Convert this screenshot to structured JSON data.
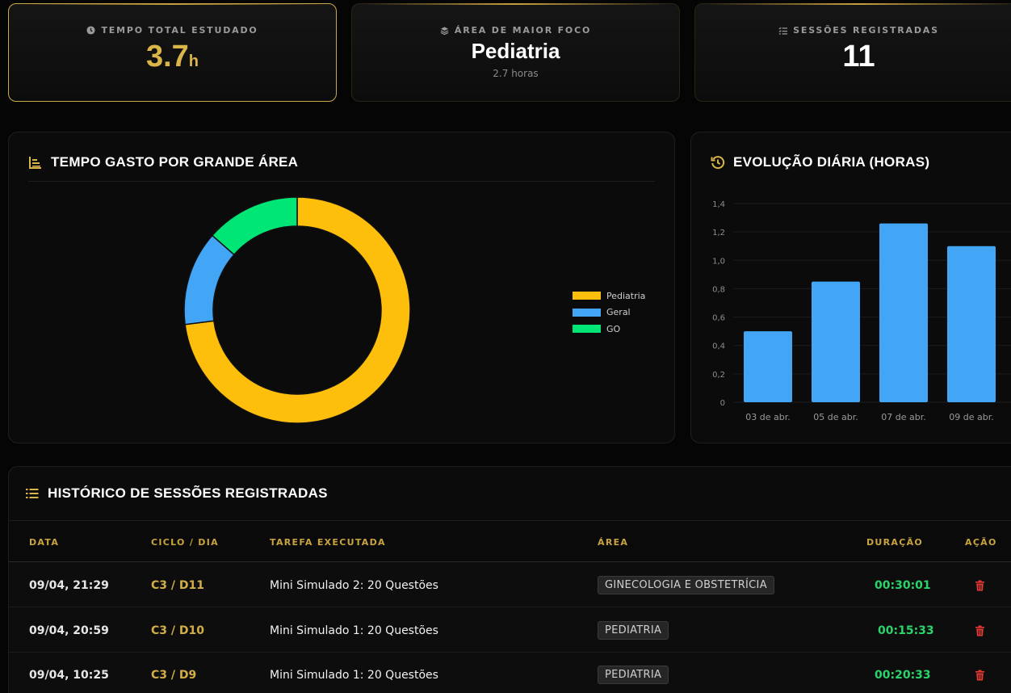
{
  "stats": {
    "total_time": {
      "label": "TEMPO TOTAL ESTUDADO",
      "value": "3.7",
      "unit": "h",
      "icon": "clock-icon"
    },
    "top_area": {
      "label": "ÁREA DE MAIOR FOCO",
      "value": "Pediatria",
      "sub": "2.7 horas",
      "icon": "layers-icon"
    },
    "sessions": {
      "label": "SESSÕES REGISTRADAS",
      "value": "11",
      "icon": "list-check-icon"
    }
  },
  "area_panel": {
    "title": "TEMPO GASTO POR GRANDE ÁREA",
    "icon": "chart-bars-icon"
  },
  "daily_panel": {
    "title": "EVOLUÇÃO DIÁRIA (HORAS)",
    "icon": "history-icon"
  },
  "history": {
    "title": "HISTÓRICO DE SESSÕES REGISTRADAS",
    "icon": "list-icon",
    "columns": {
      "date": "DATA",
      "cycle": "CICLO / DIA",
      "task": "TAREFA EXECUTADA",
      "area": "ÁREA",
      "duration": "DURAÇÃO",
      "action": "AÇÃO"
    },
    "rows": [
      {
        "date": "09/04, 21:29",
        "cycle": "C3 / D11",
        "task": "Mini Simulado 2: 20 Questões",
        "area": "GINECOLOGIA E OBSTETRÍCIA",
        "duration": "00:30:01"
      },
      {
        "date": "09/04, 20:59",
        "cycle": "C3 / D10",
        "task": "Mini Simulado 1: 20 Questões",
        "area": "PEDIATRIA",
        "duration": "00:15:33"
      },
      {
        "date": "09/04, 10:25",
        "cycle": "C3 / D9",
        "task": "Mini Simulado 1: 20 Questões",
        "area": "PEDIATRIA",
        "duration": "00:20:33"
      }
    ]
  },
  "colors": {
    "gold": "#d9b54a",
    "pediatria": "#fdbf0b",
    "geral": "#42a5f5",
    "go": "#00e676",
    "bar": "#42a5f5",
    "duration": "#2bd46b",
    "delete": "#e53935"
  },
  "chart_data": [
    {
      "type": "pie",
      "categories": [
        "Pediatria",
        "Geral",
        "GO"
      ],
      "values": [
        2.7,
        0.5,
        0.5
      ],
      "legend": "right",
      "donut": true
    },
    {
      "type": "bar",
      "categories": [
        "03 de abr.",
        "05 de abr.",
        "07 de abr.",
        "09 de abr."
      ],
      "values": [
        0.5,
        0.85,
        1.26,
        1.1
      ],
      "ylim": [
        0,
        1.4
      ],
      "yticks": [
        "0",
        "0,2",
        "0,4",
        "0,6",
        "0,8",
        "1,0",
        "1,2",
        "1,4"
      ],
      "grid": true
    }
  ]
}
